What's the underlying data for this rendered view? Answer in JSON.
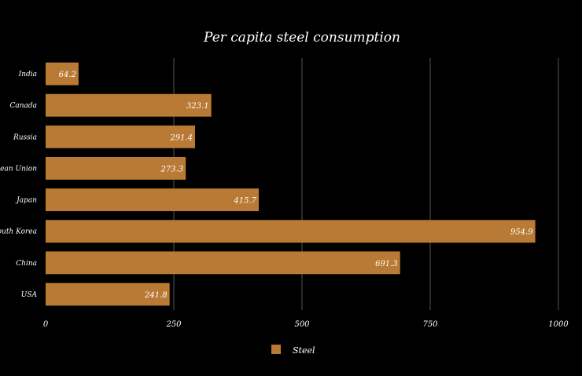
{
  "chart_data": {
    "type": "bar",
    "orientation": "horizontal",
    "title": "Per capita steel consumption",
    "categories": [
      "India",
      "Canada",
      "Russia",
      "European Union",
      "Japan",
      "South Korea",
      "China",
      "USA"
    ],
    "series": [
      {
        "name": "Steel",
        "values": [
          64.2,
          323.1,
          291.4,
          273.3,
          415.7,
          954.9,
          691.3,
          241.8
        ],
        "value_labels": [
          "64.2",
          "323.1",
          "291.4",
          "273.3",
          "415.7",
          "954.9",
          "691.3",
          "241.8"
        ]
      }
    ],
    "xlim": [
      0,
      1000
    ],
    "x_ticks": [
      0,
      250,
      500,
      750,
      1000
    ],
    "x_tick_labels": [
      "0",
      "250",
      "500",
      "750",
      "1000"
    ],
    "grid": "vertical",
    "legend_position": "bottom",
    "xlabel": "",
    "ylabel": ""
  },
  "colors": {
    "background": "#000000",
    "bar": "#b87a34",
    "grid": "#555555",
    "text": "#ffffff"
  }
}
